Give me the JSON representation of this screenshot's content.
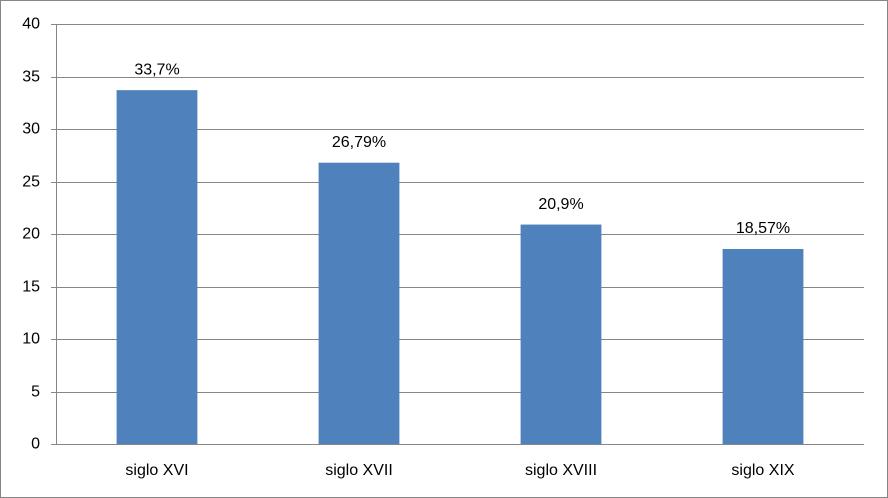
{
  "chart_data": {
    "type": "bar",
    "categories": [
      "siglo XVI",
      "siglo XVII",
      "siglo XVIII",
      "siglo XIX"
    ],
    "values": [
      33.7,
      26.79,
      20.9,
      18.57
    ],
    "value_labels": [
      "33,7%",
      "26,79%",
      "20,9%",
      "18,57%"
    ],
    "color": "#4f81bd",
    "ylim": [
      0,
      40
    ],
    "yticks": [
      0,
      5,
      10,
      15,
      20,
      25,
      30,
      35,
      40
    ],
    "grid": true
  }
}
